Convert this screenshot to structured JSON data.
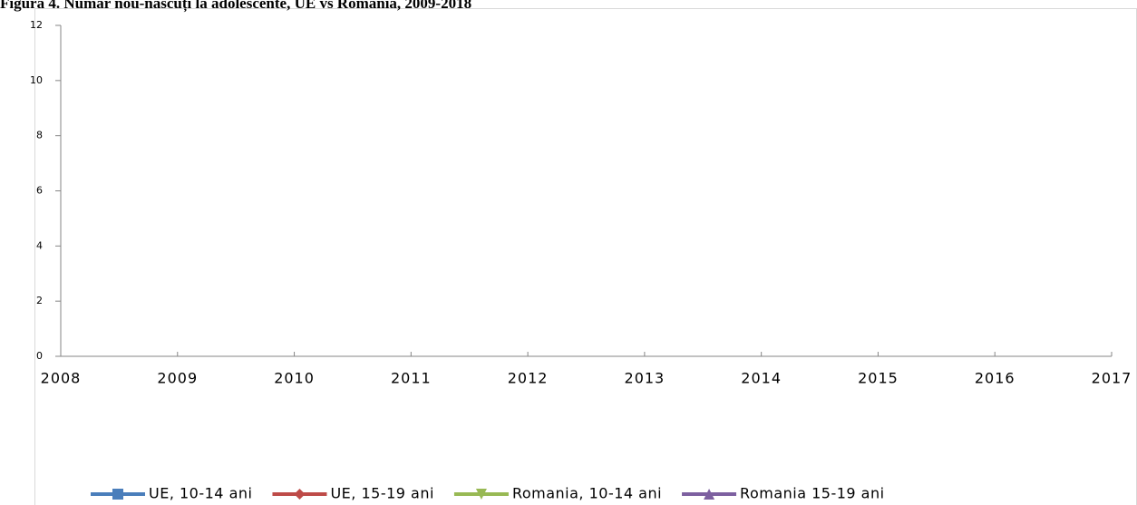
{
  "chart_data": {
    "type": "line",
    "title": "Figura 4. Număr nou-născuți la adolescente, UE vs Romania, 2009-2018",
    "xlim": [
      2008,
      2017
    ],
    "xticks": [
      2008,
      2009,
      2010,
      2011,
      2012,
      2013,
      2014,
      2015,
      2016,
      2017
    ],
    "ylim": [
      0,
      12
    ],
    "yticks": [
      0,
      2,
      4,
      6,
      8,
      10,
      12
    ],
    "legend": "bottom",
    "series": [
      {
        "name": "UE, 10-14 ani",
        "color": "#4a7ebb",
        "marker": "square",
        "values": []
      },
      {
        "name": "UE, 15-19 ani",
        "color": "#be4b48",
        "marker": "diamond",
        "values": []
      },
      {
        "name": "Romania, 10-14 ani",
        "color": "#98b954",
        "marker": "triangle-down",
        "values": []
      },
      {
        "name": "Romania 15-19 ani",
        "color": "#7d60a0",
        "marker": "triangle-up",
        "values": []
      }
    ]
  }
}
